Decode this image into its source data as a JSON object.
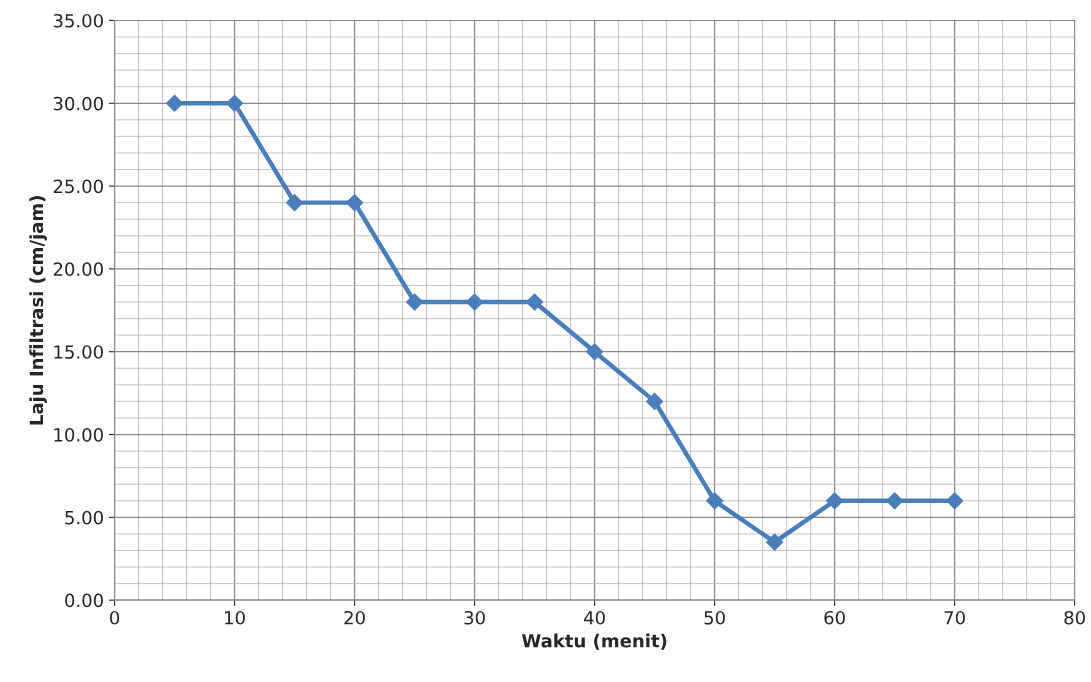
{
  "chart_data": {
    "type": "line",
    "xlabel": "Waktu (menit)",
    "ylabel": "Laju Infiltrasi (cm/jam)",
    "x": [
      5,
      10,
      15,
      20,
      25,
      30,
      35,
      40,
      45,
      50,
      55,
      60,
      65,
      70
    ],
    "series": [
      {
        "color": "#4a7ebb",
        "values": [
          30,
          30,
          24,
          24,
          18,
          18,
          18,
          15,
          12,
          6,
          3.5,
          6,
          6,
          6
        ]
      }
    ],
    "xlim": [
      0,
      80
    ],
    "xticks": [
      0,
      10,
      20,
      30,
      40,
      50,
      60,
      70,
      80
    ],
    "ylim": [
      0,
      35
    ],
    "yticks": [
      {
        "value": 0,
        "label": "0.00"
      },
      {
        "value": 5,
        "label": "5.00"
      },
      {
        "value": 10,
        "label": "10.00"
      },
      {
        "value": 15,
        "label": "15.00"
      },
      {
        "value": 20,
        "label": "20.00"
      },
      {
        "value": 25,
        "label": "25.00"
      },
      {
        "value": 30,
        "label": "30.00"
      },
      {
        "value": 35,
        "label": "35.00"
      }
    ],
    "grid": true,
    "marker": "diamond",
    "line_style": "solid",
    "legend": false
  }
}
